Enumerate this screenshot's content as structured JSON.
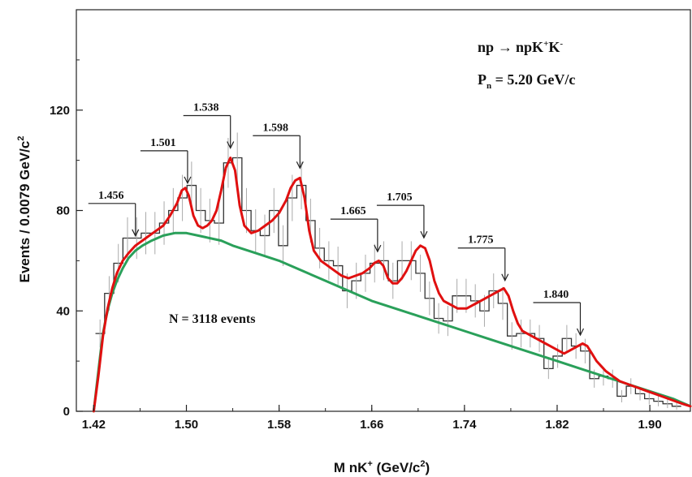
{
  "chart_data": {
    "type": "line",
    "xlabel": "M nK",
    "xlabel_sup": "+",
    "xlabel_unit": " (GeV/c",
    "xlabel_unit_sup": "2",
    "xlabel_unit_end": ")",
    "ylabel": "Events / 0.0079 GeV/c",
    "ylabel_sup": "2",
    "xlim": [
      1.405,
      1.935
    ],
    "ylim": [
      0,
      160
    ],
    "x_ticks": [
      "1.42",
      "1.50",
      "1.58",
      "1.66",
      "1.74",
      "1.82",
      "1.90"
    ],
    "y_ticks": [
      "0",
      "40",
      "80",
      "120"
    ],
    "reaction": {
      "lhs": "np",
      "arrow": "→",
      "rhs": "npK",
      "sup1": "+",
      "mid": "K",
      "sup2": "-"
    },
    "beam": {
      "sym": "P",
      "sub": "n",
      "rest": " = 5.20 GeV/c"
    },
    "annotation": "N = 3118 events",
    "peaks": [
      {
        "label": "1.456",
        "x": 1.456
      },
      {
        "label": "1.501",
        "x": 1.501
      },
      {
        "label": "1.538",
        "x": 1.538
      },
      {
        "label": "1.598",
        "x": 1.598
      },
      {
        "label": "1.665",
        "x": 1.665
      },
      {
        "label": "1.705",
        "x": 1.705
      },
      {
        "label": "1.775",
        "x": 1.775
      },
      {
        "label": "1.840",
        "x": 1.84
      }
    ],
    "histogram": {
      "name": "data",
      "bin_width": 0.0079,
      "start": 1.4215,
      "counts": [
        31,
        47,
        59,
        69,
        69,
        71,
        71,
        75,
        80,
        85,
        90,
        80,
        76,
        75,
        99,
        101,
        80,
        72,
        70,
        80,
        66,
        85,
        90,
        76,
        65,
        60,
        58,
        48,
        52,
        55,
        59,
        60,
        52,
        60,
        60,
        55,
        45,
        37,
        36,
        46,
        46,
        44,
        40,
        48,
        43,
        30,
        31,
        31,
        29,
        17,
        22,
        29,
        26,
        24,
        13,
        14,
        13,
        6,
        10,
        7,
        5,
        4,
        3,
        2
      ]
    },
    "series": [
      {
        "name": "fit",
        "color": "#e01010",
        "x": [
          1.42,
          1.424,
          1.428,
          1.432,
          1.436,
          1.44,
          1.445,
          1.45,
          1.456,
          1.462,
          1.468,
          1.474,
          1.48,
          1.486,
          1.492,
          1.496,
          1.499,
          1.502,
          1.506,
          1.51,
          1.514,
          1.518,
          1.522,
          1.526,
          1.53,
          1.534,
          1.538,
          1.542,
          1.546,
          1.55,
          1.556,
          1.562,
          1.568,
          1.574,
          1.58,
          1.586,
          1.59,
          1.594,
          1.598,
          1.602,
          1.606,
          1.61,
          1.616,
          1.622,
          1.628,
          1.634,
          1.64,
          1.646,
          1.652,
          1.658,
          1.662,
          1.666,
          1.67,
          1.674,
          1.678,
          1.682,
          1.686,
          1.69,
          1.694,
          1.698,
          1.702,
          1.706,
          1.71,
          1.714,
          1.718,
          1.722,
          1.726,
          1.73,
          1.734,
          1.738,
          1.742,
          1.746,
          1.75,
          1.754,
          1.758,
          1.762,
          1.766,
          1.77,
          1.774,
          1.778,
          1.782,
          1.786,
          1.79,
          1.794,
          1.798,
          1.802,
          1.806,
          1.81,
          1.814,
          1.818,
          1.822,
          1.826,
          1.83,
          1.834,
          1.838,
          1.842,
          1.846,
          1.85,
          1.854,
          1.858,
          1.862,
          1.868,
          1.874,
          1.88,
          1.886,
          1.892,
          1.898,
          1.904,
          1.91,
          1.916,
          1.922,
          1.928,
          1.935
        ],
        "y": [
          0,
          14,
          30,
          41,
          49,
          55,
          60,
          63,
          66,
          68,
          70,
          72,
          74,
          78,
          83,
          88,
          89,
          86,
          78,
          74,
          73,
          74,
          76,
          80,
          88,
          97,
          101,
          96,
          82,
          74,
          71,
          72,
          74,
          76,
          79,
          84,
          89,
          92,
          93,
          85,
          72,
          64,
          60,
          58,
          56,
          54,
          53,
          54,
          55,
          57,
          59,
          60,
          58,
          53,
          51,
          51,
          53,
          56,
          60,
          64,
          66,
          65,
          60,
          52,
          47,
          44,
          43,
          42,
          41,
          41,
          41,
          42,
          43,
          44,
          45,
          46,
          47,
          48,
          49,
          46,
          40,
          35,
          32,
          31,
          30,
          29,
          28,
          27,
          26,
          25,
          24,
          23,
          24,
          25,
          26,
          27,
          26,
          23,
          20,
          18,
          16,
          14,
          12,
          11,
          10,
          9,
          8,
          7,
          6,
          5,
          4,
          3,
          2
        ]
      },
      {
        "name": "background",
        "color": "#2aa05a",
        "x": [
          1.42,
          1.422,
          1.424,
          1.426,
          1.428,
          1.43,
          1.433,
          1.436,
          1.44,
          1.445,
          1.45,
          1.456,
          1.462,
          1.47,
          1.48,
          1.49,
          1.5,
          1.51,
          1.52,
          1.53,
          1.54,
          1.56,
          1.58,
          1.6,
          1.62,
          1.64,
          1.66,
          1.68,
          1.7,
          1.72,
          1.74,
          1.76,
          1.78,
          1.8,
          1.82,
          1.84,
          1.86,
          1.88,
          1.9,
          1.92,
          1.935
        ],
        "y": [
          0,
          8,
          16,
          24,
          31,
          36,
          42,
          47,
          52,
          57,
          61,
          64,
          66,
          68,
          70,
          71,
          71,
          70,
          69,
          68,
          66,
          63,
          60,
          56,
          52,
          48,
          44,
          41,
          38,
          35,
          32,
          29,
          26,
          23,
          20,
          17,
          14,
          11,
          8,
          5,
          2
        ]
      }
    ]
  }
}
